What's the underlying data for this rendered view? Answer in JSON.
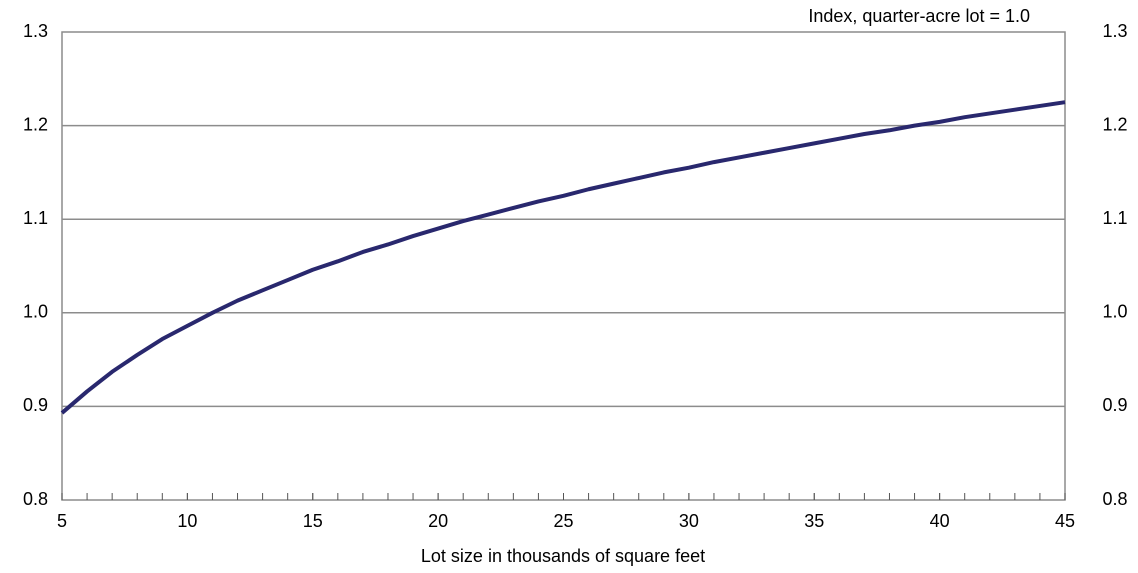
{
  "chart_data": {
    "type": "line",
    "y_label": "Index, quarter-acre lot = 1.0",
    "x_label": "Lot size in thousands of square feet",
    "x": [
      5,
      6,
      7,
      8,
      9,
      10,
      11,
      12,
      13,
      14,
      15,
      16,
      17,
      18,
      19,
      20,
      21,
      22,
      23,
      24,
      25,
      26,
      27,
      28,
      29,
      30,
      31,
      32,
      33,
      34,
      35,
      36,
      37,
      38,
      39,
      40,
      41,
      42,
      43,
      44,
      45
    ],
    "series": [
      {
        "color": "#29286e",
        "values": [
          0.893,
          0.916,
          0.937,
          0.955,
          0.972,
          0.986,
          1.0,
          1.013,
          1.024,
          1.035,
          1.046,
          1.055,
          1.065,
          1.073,
          1.082,
          1.09,
          1.098,
          1.105,
          1.112,
          1.119,
          1.125,
          1.132,
          1.138,
          1.144,
          1.15,
          1.155,
          1.161,
          1.166,
          1.171,
          1.176,
          1.181,
          1.186,
          1.191,
          1.195,
          1.2,
          1.204,
          1.209,
          1.213,
          1.217,
          1.221,
          1.225
        ]
      }
    ],
    "xlim": [
      5,
      45
    ],
    "xticks": [
      5,
      10,
      15,
      20,
      25,
      30,
      35,
      40,
      45
    ],
    "ylim": [
      0.8,
      1.3
    ],
    "yticks": [
      0.8,
      0.9,
      {
        "value": 1.0,
        "label": "1.0"
      },
      1.1,
      1.2,
      1.3
    ],
    "y2lim": [
      0.8,
      1.3
    ],
    "y2ticks": [
      0.8,
      0.9,
      {
        "value": 1.0,
        "label": "1.0"
      },
      1.1,
      1.2,
      1.3
    ],
    "grid": true
  }
}
